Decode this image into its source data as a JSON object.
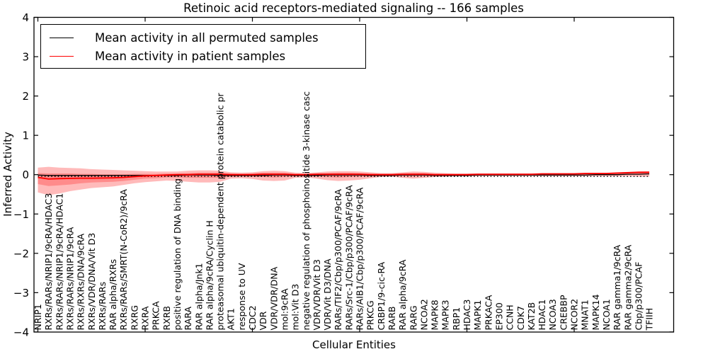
{
  "chart_data": {
    "type": "line",
    "title": "Retinoic acid receptors-mediated signaling -- 166 samples",
    "xlabel": "Cellular Entities",
    "ylabel": "Inferred Activity",
    "ylim": [
      -4,
      4
    ],
    "yticks": [
      -4,
      -3,
      -2,
      -1,
      0,
      1,
      2,
      3,
      4
    ],
    "xtick_major_every": 10,
    "grid": false,
    "legend_position": "upper left",
    "categories": [
      "NRIP1",
      "RXRs/RARs/NRIP1/9cRA/HDAC3",
      "RXRs/RARs/NRIP1/9cRA/HDAC1",
      "RXRs/RARs/NRIP1/9cRA",
      "RXRs/RXRs/DNA/9cRA",
      "RXRs/VDR/DNA/Vit D3",
      "RXRs/RARs",
      "RAR alpha/RXRs",
      "RXRs/RARs/SMRT(N-CoR2)/9cRA",
      "RXRG",
      "RXRA",
      "PRKCA",
      "RXRB",
      "positive regulation of DNA binding",
      "RARA",
      "RAR alpha/Jnk1",
      "RAR alpha/9cRA/Cyclin H",
      "proteasomal ubiquitin-dependent protein catabolic pr",
      "AKT1",
      "response to UV",
      "CDC2",
      "VDR",
      "VDR/VDR/DNA",
      "mol:9cRA",
      "mol:Vit D3",
      "negative regulation of phosphoinositide 3-kinase casc",
      "VDR/VDR/Vit D3",
      "VDR/Vit D3/DNA",
      "RARs/TIF2/Cbp/p300/PCAF/9cRA",
      "RARs/Src-1/Cbp/p300/PCAF/9cRA",
      "RARs/AIB1/Cbp/p300/PCAF/9cRA",
      "PRKCG",
      "CRBP1/9-cic-RA",
      "RARB",
      "RAR alpha/9cRA",
      "RARG",
      "NCOA2",
      "MAPK8",
      "MAPK3",
      "RBP1",
      "HDAC3",
      "MAPK1",
      "PRKACA",
      "EP300",
      "CCNH",
      "CDK7",
      "KAT2B",
      "HDAC1",
      "NCOA3",
      "CREBBP",
      "NCOR2",
      "MNAT1",
      "MAPK14",
      "NCOA1",
      "RAR gamma1/9cRA",
      "RAR gamma2/9cRA",
      "Cbp/p300/PCAF",
      "TFIIH"
    ],
    "series": [
      {
        "name": "Mean activity in all permuted samples",
        "color": "#000000",
        "style": "solid",
        "values": [
          -0.01,
          -0.02,
          -0.02,
          -0.02,
          -0.02,
          -0.02,
          -0.02,
          -0.02,
          -0.02,
          -0.02,
          -0.02,
          -0.02,
          -0.02,
          -0.02,
          -0.01,
          -0.01,
          -0.01,
          -0.02,
          -0.02,
          -0.02,
          -0.02,
          -0.02,
          -0.01,
          -0.01,
          -0.02,
          -0.02,
          -0.02,
          -0.01,
          -0.01,
          -0.01,
          -0.01,
          -0.02,
          -0.02,
          -0.02,
          -0.01,
          -0.01,
          -0.01,
          -0.02,
          -0.02,
          -0.02,
          -0.02,
          -0.01,
          -0.01,
          -0.01,
          -0.01,
          -0.01,
          -0.01,
          -0.01,
          -0.01,
          -0.01,
          -0.01,
          -0.01,
          0.0,
          0.0,
          0.0,
          0.01,
          0.01,
          0.02
        ]
      },
      {
        "name": "Mean activity in patient samples",
        "color": "#ff0000",
        "style": "solid",
        "values": [
          -0.07,
          -0.11,
          -0.1,
          -0.095,
          -0.09,
          -0.09,
          -0.085,
          -0.08,
          -0.07,
          -0.05,
          -0.03,
          -0.02,
          -0.01,
          0.0,
          0.0,
          0.01,
          0.01,
          0.01,
          0.0,
          0.0,
          0.0,
          0.01,
          0.01,
          0.01,
          0.0,
          0.0,
          0.01,
          0.01,
          0.01,
          0.01,
          0.01,
          0.0,
          0.0,
          0.0,
          0.01,
          0.01,
          0.01,
          0.0,
          0.0,
          0.0,
          0.0,
          0.01,
          0.01,
          0.01,
          0.01,
          0.01,
          0.01,
          0.02,
          0.02,
          0.02,
          0.02,
          0.03,
          0.03,
          0.03,
          0.04,
          0.05,
          0.06,
          0.06
        ]
      }
    ],
    "baseline": {
      "value": -0.045,
      "color": "#000000",
      "style": "dotted"
    },
    "bands": [
      {
        "name": "patient-std-outer-band",
        "color": "#ff0000",
        "opacity": 0.27,
        "upper": [
          0.18,
          0.2,
          0.18,
          0.17,
          0.16,
          0.14,
          0.13,
          0.12,
          0.11,
          0.1,
          0.09,
          0.08,
          0.08,
          0.08,
          0.1,
          0.11,
          0.11,
          0.1,
          0.06,
          0.05,
          0.06,
          0.09,
          0.1,
          0.09,
          0.05,
          0.04,
          0.06,
          0.08,
          0.09,
          0.09,
          0.08,
          0.06,
          0.04,
          0.04,
          0.06,
          0.08,
          0.07,
          0.05,
          0.04,
          0.03,
          0.03,
          0.03,
          0.03,
          0.03,
          0.03,
          0.03,
          0.03,
          0.03,
          0.03,
          0.03,
          0.03,
          0.03,
          0.03,
          0.04,
          0.05,
          0.07,
          0.08,
          0.09
        ],
        "lower": [
          -0.45,
          -0.52,
          -0.48,
          -0.42,
          -0.38,
          -0.34,
          -0.32,
          -0.3,
          -0.26,
          -0.22,
          -0.19,
          -0.17,
          -0.15,
          -0.16,
          -0.18,
          -0.2,
          -0.2,
          -0.18,
          -0.1,
          -0.09,
          -0.11,
          -0.15,
          -0.16,
          -0.15,
          -0.08,
          -0.07,
          -0.1,
          -0.14,
          -0.16,
          -0.15,
          -0.13,
          -0.09,
          -0.06,
          -0.05,
          -0.08,
          -0.1,
          -0.08,
          -0.06,
          -0.05,
          -0.04,
          -0.04,
          -0.04,
          -0.04,
          -0.04,
          -0.04,
          -0.04,
          -0.04,
          -0.04,
          -0.04,
          -0.04,
          -0.04,
          -0.04,
          -0.04,
          -0.04,
          -0.04,
          -0.04,
          -0.05,
          -0.05
        ]
      },
      {
        "name": "patient-std-inner-band",
        "color": "#ff0000",
        "opacity": 0.25,
        "upper": [
          0.04,
          0.03,
          0.03,
          0.03,
          0.02,
          0.02,
          0.01,
          0.01,
          0.01,
          0.02,
          0.02,
          0.02,
          0.03,
          0.03,
          0.04,
          0.05,
          0.05,
          0.05,
          0.03,
          0.02,
          0.03,
          0.05,
          0.05,
          0.05,
          0.02,
          0.02,
          0.03,
          0.04,
          0.05,
          0.05,
          0.04,
          0.03,
          0.02,
          0.02,
          0.03,
          0.04,
          0.04,
          0.02,
          0.02,
          0.01,
          0.01,
          0.02,
          0.02,
          0.02,
          0.02,
          0.02,
          0.02,
          0.03,
          0.03,
          0.03,
          0.03,
          0.03,
          0.03,
          0.03,
          0.04,
          0.05,
          0.06,
          0.07
        ],
        "lower": [
          -0.24,
          -0.29,
          -0.27,
          -0.25,
          -0.22,
          -0.2,
          -0.19,
          -0.18,
          -0.16,
          -0.13,
          -0.1,
          -0.09,
          -0.07,
          -0.07,
          -0.08,
          -0.08,
          -0.08,
          -0.08,
          -0.05,
          -0.04,
          -0.05,
          -0.06,
          -0.07,
          -0.06,
          -0.04,
          -0.03,
          -0.04,
          -0.06,
          -0.07,
          -0.06,
          -0.05,
          -0.04,
          -0.03,
          -0.02,
          -0.03,
          -0.04,
          -0.03,
          -0.03,
          -0.02,
          -0.02,
          -0.02,
          -0.02,
          -0.02,
          -0.02,
          -0.02,
          -0.02,
          -0.02,
          -0.01,
          -0.01,
          -0.01,
          -0.01,
          -0.01,
          -0.01,
          -0.01,
          -0.01,
          0.0,
          0.01,
          0.02
        ]
      }
    ]
  }
}
